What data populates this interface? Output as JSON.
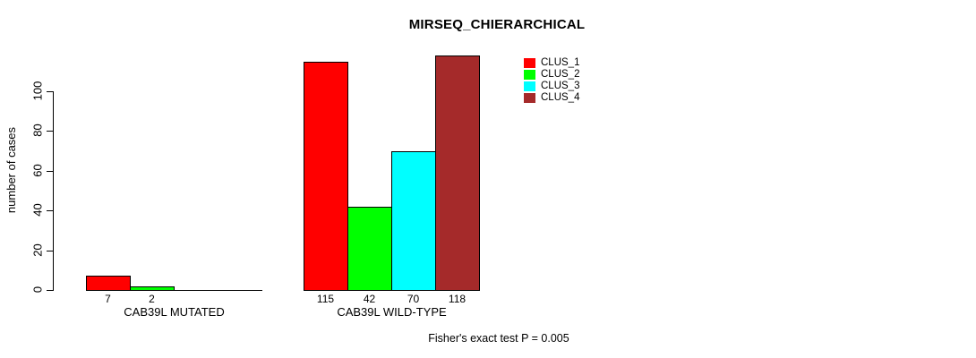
{
  "title": "MIRSEQ_CHIERARCHICAL",
  "chart_data": {
    "type": "bar",
    "title": "MIRSEQ_CHIERARCHICAL",
    "xlabel": "",
    "ylabel": "number of cases",
    "ylim": [
      0,
      118
    ],
    "yticks": [
      0,
      20,
      40,
      60,
      80,
      100
    ],
    "grid": false,
    "legend_position": "top-right",
    "categories": [
      "CAB39L MUTATED",
      "CAB39L WILD-TYPE"
    ],
    "series": [
      {
        "name": "CLUS_1",
        "color": "#FF0000",
        "values": [
          7,
          115
        ]
      },
      {
        "name": "CLUS_2",
        "color": "#00FF00",
        "values": [
          2,
          42
        ]
      },
      {
        "name": "CLUS_3",
        "color": "#00FFFF",
        "values": [
          0,
          70
        ]
      },
      {
        "name": "CLUS_4",
        "color": "#A52A2A",
        "values": [
          0,
          118
        ]
      }
    ],
    "bar_value_labels": [
      [
        "7",
        "2",
        "",
        ""
      ],
      [
        "115",
        "42",
        "70",
        "118"
      ]
    ],
    "annotation": "Fisher's exact test P = 0.005"
  },
  "colors": {
    "background": "#FFFFFF",
    "axis": "#000000",
    "text": "#000000"
  }
}
